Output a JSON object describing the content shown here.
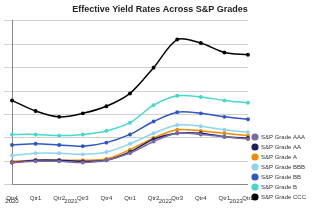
{
  "chart_data": {
    "type": "line",
    "title": "Effective Yield Rates Across S&P Grades",
    "categories": [
      "Qtr4",
      "Qtr1",
      "Qtr2",
      "Qtr3",
      "Qtr4",
      "Qtr1",
      "Qtr2",
      "Qtr3",
      "Qtr4",
      "Qtr1",
      "Qtr2"
    ],
    "category_groups": [
      "2020",
      "2021",
      "2021",
      "2021",
      "2021",
      "2022",
      "2022",
      "2022",
      "2022",
      "2023",
      "2023"
    ],
    "series": [
      {
        "name": "S&P Grade AAA",
        "color": "#7a6aa8",
        "marker": "circle",
        "values": [
          1.9,
          2.0,
          2.0,
          1.9,
          2.1,
          2.7,
          3.7,
          4.4,
          4.3,
          4.1,
          3.9
        ]
      },
      {
        "name": "S&P Grade AA",
        "color": "#1c1f5e",
        "marker": "circle",
        "values": [
          1.9,
          2.1,
          2.1,
          2.0,
          2.1,
          2.8,
          3.9,
          4.4,
          4.4,
          4.1,
          4.0
        ]
      },
      {
        "name": "S&P Grade A",
        "color": "#f08a00",
        "marker": "circle",
        "values": [
          2.0,
          2.1,
          2.1,
          2.1,
          2.2,
          3.0,
          4.0,
          4.7,
          4.6,
          4.4,
          4.2
        ]
      },
      {
        "name": "S&P Grade BBB",
        "color": "#8fd3f0",
        "marker": "circle",
        "values": [
          2.5,
          2.7,
          2.7,
          2.6,
          2.8,
          3.5,
          4.4,
          5.1,
          5.0,
          4.7,
          4.5
        ]
      },
      {
        "name": "S&P Grade BB",
        "color": "#2f56c6",
        "marker": "circle",
        "values": [
          3.4,
          3.5,
          3.4,
          3.3,
          3.6,
          4.3,
          5.4,
          6.2,
          6.1,
          5.8,
          5.6
        ]
      },
      {
        "name": "S&P Grade B",
        "color": "#45d8cc",
        "marker": "circle",
        "values": [
          4.3,
          4.3,
          4.2,
          4.3,
          4.6,
          5.3,
          6.8,
          7.6,
          7.5,
          7.2,
          7.0
        ]
      },
      {
        "name": "S&P Grade CCC",
        "color": "#000000",
        "marker": "circle",
        "values": [
          7.2,
          6.3,
          5.8,
          6.1,
          6.7,
          7.8,
          10.0,
          12.4,
          12.1,
          11.3,
          11.1
        ]
      }
    ],
    "ylim": [
      0,
      14
    ],
    "yticks": [
      0,
      2,
      4,
      6,
      8,
      10,
      12,
      14
    ],
    "grid": true,
    "legend": "right",
    "tick_labels": "x"
  }
}
